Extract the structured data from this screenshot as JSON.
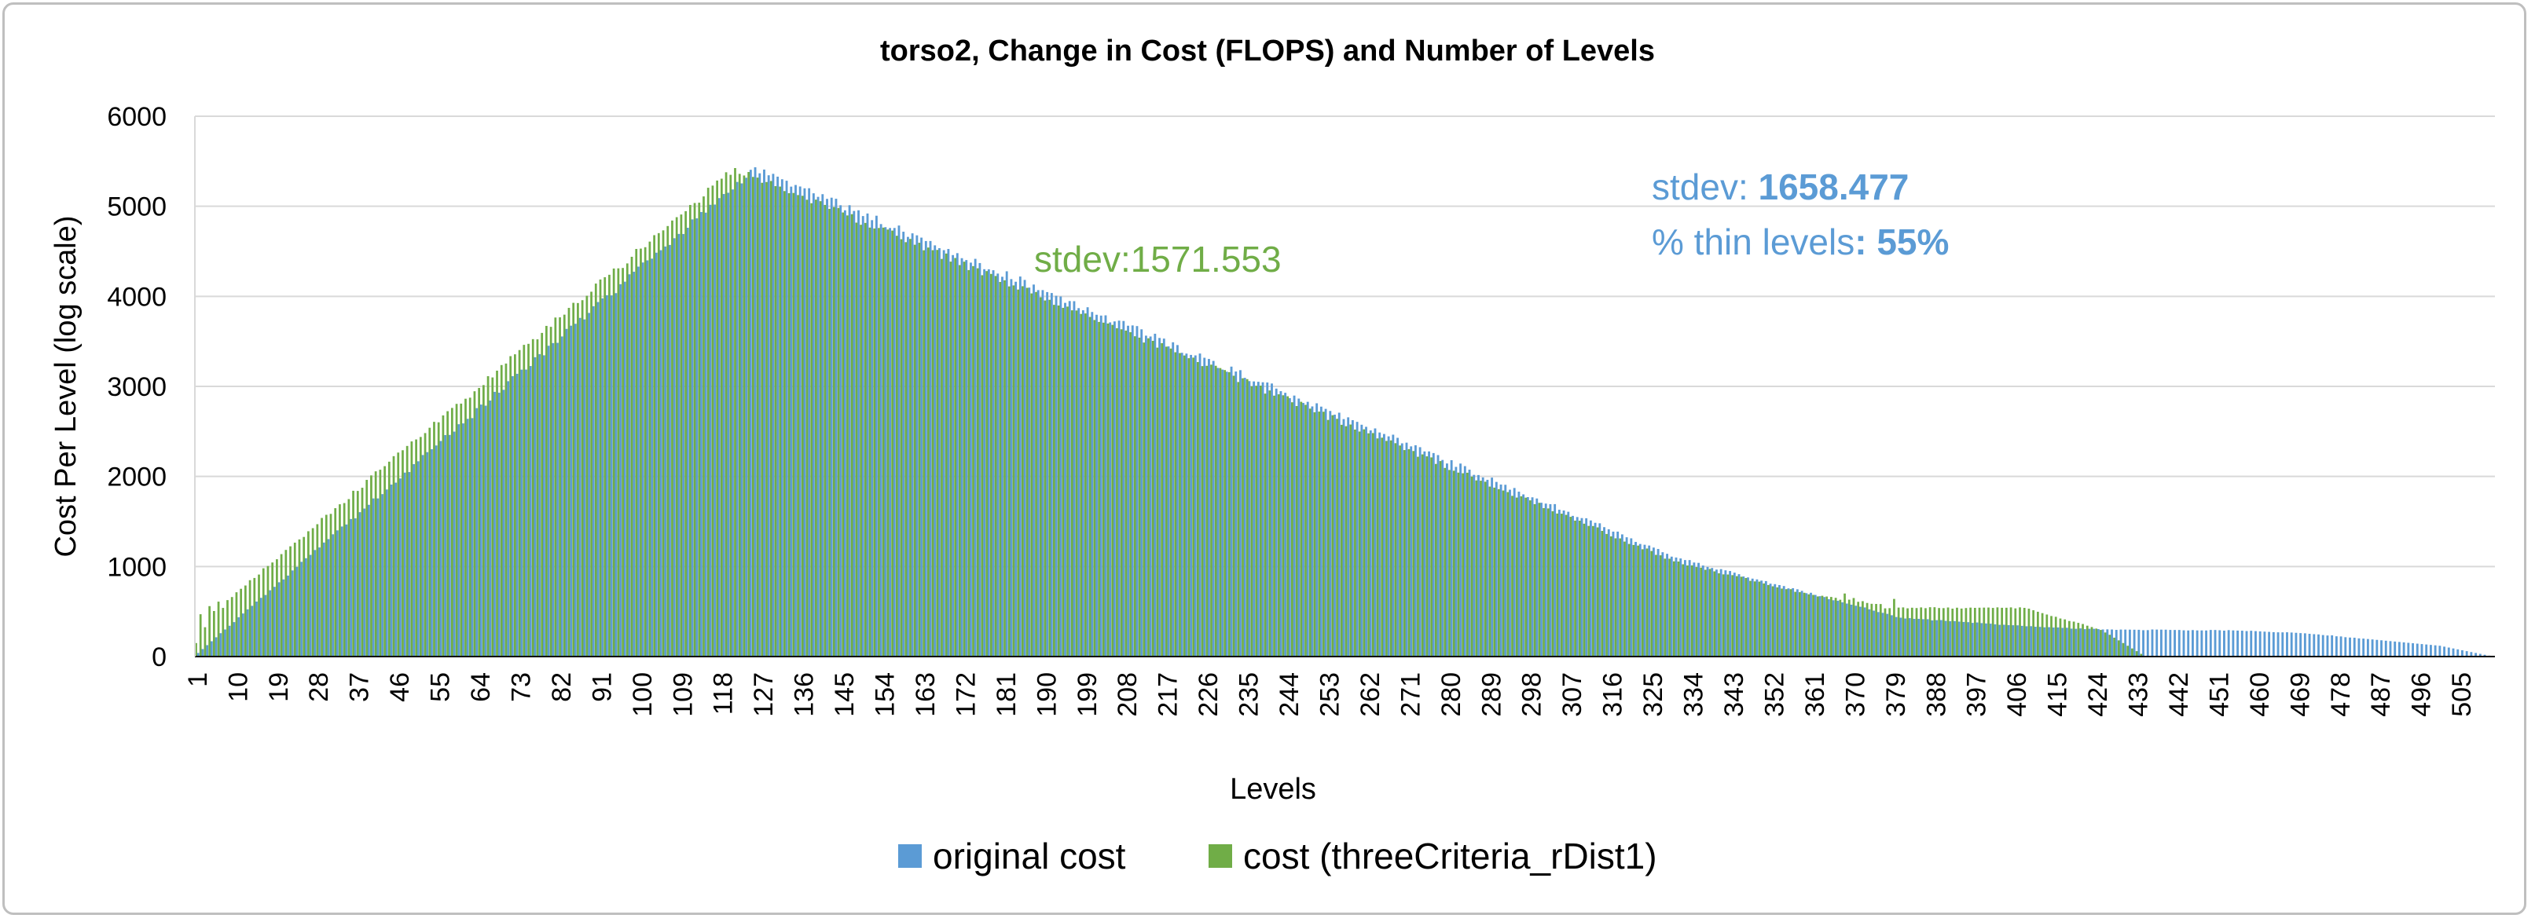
{
  "chart_data": {
    "type": "bar",
    "title": "torso2, Change in Cost (FLOPS) and Number of Levels",
    "xlabel": "Levels",
    "ylabel": "Cost Per Level (log scale)",
    "ylim": [
      0,
      6000
    ],
    "yticks": [
      0,
      1000,
      2000,
      3000,
      4000,
      5000,
      6000
    ],
    "grid": true,
    "legend_position": "bottom",
    "x_range": [
      1,
      512
    ],
    "x_tick_labels": [
      "1",
      "10",
      "19",
      "28",
      "37",
      "46",
      "55",
      "64",
      "73",
      "82",
      "91",
      "100",
      "109",
      "118",
      "127",
      "136",
      "145",
      "154",
      "163",
      "172",
      "181",
      "190",
      "199",
      "208",
      "217",
      "226",
      "235",
      "244",
      "253",
      "262",
      "271",
      "280",
      "289",
      "298",
      "307",
      "316",
      "325",
      "334",
      "343",
      "352",
      "361",
      "370",
      "379",
      "388",
      "397",
      "406",
      "415",
      "424",
      "433",
      "442",
      "451",
      "460",
      "469",
      "478",
      "487",
      "496",
      "505"
    ],
    "series": [
      {
        "name": "original cost",
        "color": "#5b9bd5",
        "levels": [
          1,
          512
        ],
        "profile": {
          "description_points_x": [
            1,
            125,
            330,
            360,
            380,
            410,
            425,
            455,
            470,
            500,
            512
          ],
          "description_points_y": [
            40,
            5420,
            1100,
            700,
            430,
            330,
            300,
            290,
            260,
            120,
            0
          ]
        }
      },
      {
        "name": "cost (threeCriteria_rDist1)",
        "color": "#70ad47",
        "levels": [
          1,
          435
        ],
        "profile": {
          "description_points_x": [
            1,
            5,
            121,
            330,
            361,
            370,
            376,
            377,
            408,
            425,
            435
          ],
          "description_points_y": [
            150,
            500,
            5420,
            1060,
            680,
            620,
            580,
            540,
            540,
            300,
            0
          ]
        },
        "spikes": [
          [
            2,
            470
          ],
          [
            4,
            560
          ],
          [
            6,
            610
          ],
          [
            7,
            540
          ],
          [
            368,
            700
          ],
          [
            370,
            650
          ],
          [
            379,
            640
          ]
        ]
      }
    ],
    "annotations": [
      {
        "text": "stdev:1571.553",
        "color": "#70ad47"
      },
      {
        "label": "stdev: ",
        "value": "1658.477",
        "color": "#5b9bd5"
      },
      {
        "label": "% thin levels",
        "value": ": 55%",
        "color": "#5b9bd5"
      }
    ]
  }
}
